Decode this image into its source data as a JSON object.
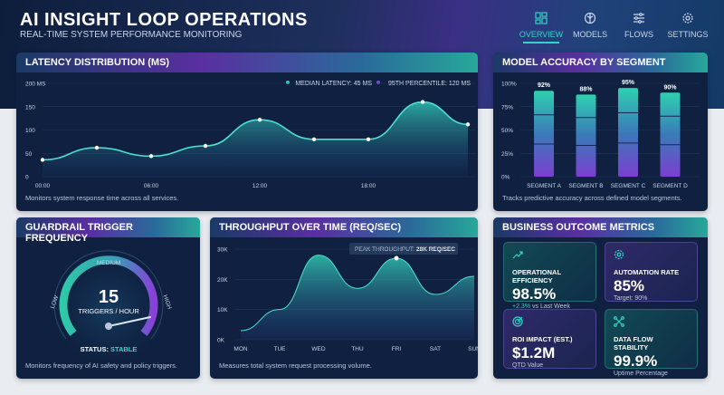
{
  "header": {
    "title": "AI INSIGHT LOOP OPERATIONS",
    "subtitle": "REAL-TIME SYSTEM PERFORMANCE MONITORING"
  },
  "nav": [
    {
      "label": "OVERVIEW",
      "icon": "dashboard-icon",
      "active": true
    },
    {
      "label": "MODELS",
      "icon": "brain-icon"
    },
    {
      "label": "FLOWS",
      "icon": "sliders-icon"
    },
    {
      "label": "SETTINGS",
      "icon": "gear-icon"
    }
  ],
  "colors": {
    "teal": "#35d4c4",
    "purple": "#7b4fd6",
    "panel": "#0f2040"
  },
  "latency": {
    "title": "LATENCY DISTRIBUTION (MS)",
    "footer": "Monitors system response time across all services.",
    "legend": {
      "median": "MEDIAN LATENCY: 45 MS",
      "p95": "95TH PERCENTILE: 120 MS"
    },
    "chart_data": {
      "type": "area",
      "y_ticks": [
        "0",
        "50",
        "100",
        "150",
        "200 MS"
      ],
      "ylim": [
        0,
        200
      ],
      "x_ticks": [
        "00:00",
        "06:00",
        "12:00",
        "18:00"
      ],
      "x_hours": [
        0,
        3,
        6,
        9,
        12,
        15,
        18,
        21,
        23.5
      ],
      "values": [
        36,
        62,
        44,
        66,
        122,
        80,
        80,
        160,
        112
      ]
    }
  },
  "accuracy": {
    "title": "MODEL ACCURACY BY SEGMENT",
    "footer": "Tracks predictive accuracy across defined model segments.",
    "chart_data": {
      "type": "bar",
      "categories": [
        "SEGMENT A",
        "SEGMENT B",
        "SEGMENT C",
        "SEGMENT D"
      ],
      "values": [
        92,
        88,
        95,
        90
      ],
      "labels": [
        "92%",
        "88%",
        "95%",
        "90%"
      ],
      "y_ticks": [
        "0%",
        "25%",
        "50%",
        "75%",
        "100%"
      ],
      "ylim": [
        0,
        100
      ]
    }
  },
  "guardrail": {
    "title": "GUARDRAIL TRIGGER FREQUENCY",
    "value": "15",
    "unit": "TRIGGERS / HOUR",
    "low": "LOW",
    "medium": "MEDIUM",
    "high": "HIGH",
    "status_label": "STATUS:",
    "status_value": "STABLE",
    "level": 0.78,
    "footer": "Monitors frequency of AI safety and policy triggers."
  },
  "throughput": {
    "title": "THROUGHPUT OVER TIME (REQ/SEC)",
    "footer": "Measures total system request processing volume.",
    "peak_label": "PEAK THROUGHPUT:",
    "peak_value": "28K REQ/SEC",
    "chart_data": {
      "type": "area",
      "categories": [
        "MON",
        "TUE",
        "WED",
        "THU",
        "FRI",
        "SAT",
        "SUN"
      ],
      "values": [
        3000,
        10000,
        28000,
        17000,
        27000,
        15000,
        21000
      ],
      "y_ticks": [
        "0K",
        "10K",
        "20K",
        "30K"
      ],
      "ylim": [
        0,
        30000
      ]
    }
  },
  "business": {
    "title": "BUSINESS OUTCOME METRICS",
    "cards": [
      {
        "label": "OPERATIONAL EFFICIENCY",
        "value": "98.5%",
        "delta": "+2.3%",
        "sub": "vs Last Week",
        "icon": "trend-up-icon"
      },
      {
        "label": "AUTOMATION RATE",
        "value": "85%",
        "sub": "Target: 90%",
        "icon": "gear-icon"
      },
      {
        "label": "ROI IMPACT (EST.)",
        "value": "$1.2M",
        "sub": "QTD Value",
        "icon": "target-icon"
      },
      {
        "label": "DATA FLOW STABILITY",
        "value": "99.9%",
        "sub": "Uptime Percentage",
        "icon": "network-icon"
      }
    ]
  }
}
